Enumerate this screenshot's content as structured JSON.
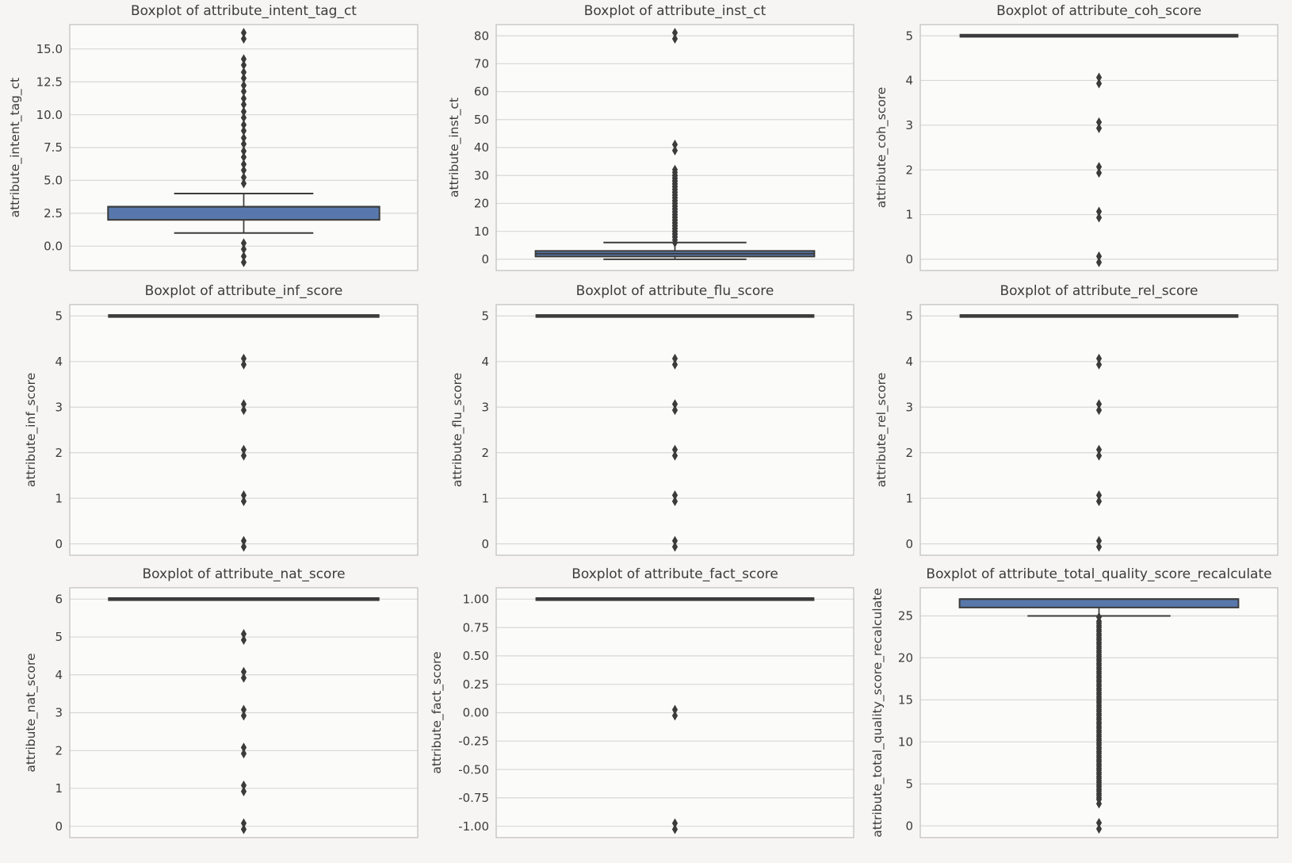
{
  "figure": {
    "background": "#f6f5f3",
    "axes_background": "#fbfbf9",
    "grid_color": "#d9d8d6",
    "spine_color": "#c7c6c4",
    "box_fill": "#5878ab",
    "line_color": "#3b3b3b",
    "text_color": "#3c3c3c"
  },
  "chart_data": [
    {
      "id": "intent_tag_ct",
      "type": "box",
      "title": "Boxplot of attribute_intent_tag_ct",
      "ylabel": "attribute_intent_tag_ct",
      "yticks": [
        0.0,
        2.5,
        5.0,
        7.5,
        10.0,
        12.5,
        15.0
      ],
      "ytick_labels": [
        "0.0",
        "2.5",
        "5.0",
        "7.5",
        "10.0",
        "12.5",
        "15.0"
      ],
      "ylim": [
        -1.85,
        16.85
      ],
      "stats": {
        "q1": 2,
        "median": 3,
        "q3": 3,
        "whisker_lo": 1,
        "whisker_hi": 4
      },
      "outliers": [
        -1,
        0,
        5,
        6,
        7,
        8,
        9,
        10,
        11,
        12,
        13,
        14,
        16
      ]
    },
    {
      "id": "inst_ct",
      "type": "box",
      "title": "Boxplot of attribute_inst_ct",
      "ylabel": "attribute_inst_ct",
      "yticks": [
        0,
        10,
        20,
        30,
        40,
        50,
        60,
        70,
        80
      ],
      "ytick_labels": [
        "0",
        "10",
        "20",
        "30",
        "40",
        "50",
        "60",
        "70",
        "80"
      ],
      "ylim": [
        -4,
        84
      ],
      "stats": {
        "q1": 1,
        "median": 2,
        "q3": 3,
        "whisker_lo": 0,
        "whisker_hi": 6
      },
      "outliers": [
        7,
        8,
        9,
        10,
        11,
        12,
        13,
        14,
        15,
        16,
        17,
        18,
        19,
        20,
        21,
        22,
        23,
        24,
        25,
        26,
        27,
        28,
        29,
        30,
        31,
        40,
        80
      ]
    },
    {
      "id": "coh_score",
      "type": "box",
      "title": "Boxplot of attribute_coh_score",
      "ylabel": "attribute_coh_score",
      "yticks": [
        0,
        1,
        2,
        3,
        4,
        5
      ],
      "ytick_labels": [
        "0",
        "1",
        "2",
        "3",
        "4",
        "5"
      ],
      "ylim": [
        -0.25,
        5.25
      ],
      "stats": {
        "q1": 5,
        "median": 5,
        "q3": 5,
        "whisker_lo": 5,
        "whisker_hi": 5
      },
      "outliers": [
        0,
        1,
        2,
        3,
        4
      ]
    },
    {
      "id": "inf_score",
      "type": "box",
      "title": "Boxplot of attribute_inf_score",
      "ylabel": "attribute_inf_score",
      "yticks": [
        0,
        1,
        2,
        3,
        4,
        5
      ],
      "ytick_labels": [
        "0",
        "1",
        "2",
        "3",
        "4",
        "5"
      ],
      "ylim": [
        -0.25,
        5.25
      ],
      "stats": {
        "q1": 5,
        "median": 5,
        "q3": 5,
        "whisker_lo": 5,
        "whisker_hi": 5
      },
      "outliers": [
        0,
        1,
        2,
        3,
        4
      ]
    },
    {
      "id": "flu_score",
      "type": "box",
      "title": "Boxplot of attribute_flu_score",
      "ylabel": "attribute_flu_score",
      "yticks": [
        0,
        1,
        2,
        3,
        4,
        5
      ],
      "ytick_labels": [
        "0",
        "1",
        "2",
        "3",
        "4",
        "5"
      ],
      "ylim": [
        -0.25,
        5.25
      ],
      "stats": {
        "q1": 5,
        "median": 5,
        "q3": 5,
        "whisker_lo": 5,
        "whisker_hi": 5
      },
      "outliers": [
        0,
        1,
        2,
        3,
        4
      ]
    },
    {
      "id": "rel_score",
      "type": "box",
      "title": "Boxplot of attribute_rel_score",
      "ylabel": "attribute_rel_score",
      "yticks": [
        0,
        1,
        2,
        3,
        4,
        5
      ],
      "ytick_labels": [
        "0",
        "1",
        "2",
        "3",
        "4",
        "5"
      ],
      "ylim": [
        -0.25,
        5.25
      ],
      "stats": {
        "q1": 5,
        "median": 5,
        "q3": 5,
        "whisker_lo": 5,
        "whisker_hi": 5
      },
      "outliers": [
        0,
        1,
        2,
        3,
        4
      ]
    },
    {
      "id": "nat_score",
      "type": "box",
      "title": "Boxplot of attribute_nat_score",
      "ylabel": "attribute_nat_score",
      "yticks": [
        0,
        1,
        2,
        3,
        4,
        5,
        6
      ],
      "ytick_labels": [
        "0",
        "1",
        "2",
        "3",
        "4",
        "5",
        "6"
      ],
      "ylim": [
        -0.3,
        6.3
      ],
      "stats": {
        "q1": 6,
        "median": 6,
        "q3": 6,
        "whisker_lo": 6,
        "whisker_hi": 6
      },
      "outliers": [
        0,
        1,
        2,
        3,
        4,
        5
      ]
    },
    {
      "id": "fact_score",
      "type": "box",
      "title": "Boxplot of attribute_fact_score",
      "ylabel": "attribute_fact_score",
      "yticks": [
        -1.0,
        -0.75,
        -0.5,
        -0.25,
        0.0,
        0.25,
        0.5,
        0.75,
        1.0
      ],
      "ytick_labels": [
        "-1.00",
        "-0.75",
        "-0.50",
        "-0.25",
        "0.00",
        "0.25",
        "0.50",
        "0.75",
        "1.00"
      ],
      "ylim": [
        -1.1,
        1.1
      ],
      "stats": {
        "q1": 1,
        "median": 1,
        "q3": 1,
        "whisker_lo": 1,
        "whisker_hi": 1
      },
      "outliers": [
        -1,
        0
      ]
    },
    {
      "id": "total_quality_score_recalculate",
      "type": "box",
      "title": "Boxplot of attribute_total_quality_score_recalculate",
      "ylabel": "attribute_total_quality_score_recalculate",
      "yticks": [
        0,
        5,
        10,
        15,
        20,
        25
      ],
      "ytick_labels": [
        "0",
        "5",
        "10",
        "15",
        "20",
        "25"
      ],
      "ylim": [
        -1.4,
        28.35
      ],
      "stats": {
        "q1": 26,
        "median": 27,
        "q3": 27,
        "whisker_lo": 25,
        "whisker_hi": 27
      },
      "outliers": [
        0,
        3,
        3.5,
        4,
        4.5,
        5,
        5.5,
        6,
        6.5,
        7,
        7.5,
        8,
        8.5,
        9,
        9.5,
        10,
        10.5,
        11,
        11.5,
        12,
        12.5,
        13,
        13.5,
        14,
        14.5,
        15,
        15.5,
        16,
        16.5,
        17,
        17.5,
        18,
        18.5,
        19,
        19.5,
        20,
        20.5,
        21,
        21.5,
        22,
        22.5,
        23,
        23.5,
        24,
        24.5
      ]
    }
  ]
}
